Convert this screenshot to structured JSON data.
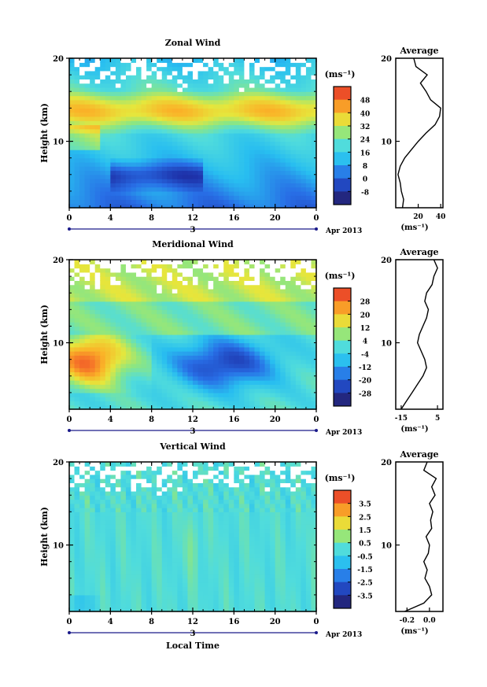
{
  "chart_data": [
    {
      "type": "heatmap",
      "title": "Zonal Wind",
      "ylabel": "Height (km)",
      "xlabel": "",
      "x_ticks": [
        "0",
        "4",
        "8",
        "12",
        "16",
        "20",
        "0"
      ],
      "y_ticks": [
        "20",
        "10"
      ],
      "date_label": "3",
      "date_suffix": "Apr 2013",
      "colorbar": {
        "unit": "(ms⁻¹)",
        "ticks": [
          "48",
          "40",
          "32",
          "24",
          "16",
          "8",
          "0",
          "-8"
        ],
        "range": [
          -12,
          52
        ]
      },
      "xlim": [
        0,
        24
      ],
      "ylim": [
        2,
        20
      ],
      "profile": {
        "title": "Average",
        "x_ticks": [
          "20",
          "40"
        ],
        "xlim": [
          0,
          42
        ],
        "y_ticks": [
          "20",
          "10"
        ],
        "unit": "(ms⁻¹)",
        "heights": [
          2,
          3,
          4,
          5,
          6,
          7,
          8,
          9,
          10,
          11,
          12,
          13,
          14,
          15,
          16,
          17,
          18,
          19,
          20
        ],
        "values": [
          6,
          7,
          5,
          4,
          2,
          4,
          8,
          14,
          20,
          27,
          35,
          39,
          40,
          31,
          27,
          22,
          28,
          18,
          16
        ]
      }
    },
    {
      "type": "heatmap",
      "title": "Meridional Wind",
      "ylabel": "Height (km)",
      "xlabel": "",
      "x_ticks": [
        "0",
        "4",
        "8",
        "12",
        "16",
        "20",
        "0"
      ],
      "y_ticks": [
        "20",
        "10"
      ],
      "date_label": "3",
      "date_suffix": "Apr 2013",
      "colorbar": {
        "unit": "(ms⁻¹)",
        "ticks": [
          "28",
          "20",
          "12",
          "4",
          "-4",
          "-12",
          "-20",
          "-28"
        ],
        "range": [
          -32,
          32
        ]
      },
      "xlim": [
        0,
        24
      ],
      "ylim": [
        2,
        20
      ],
      "profile": {
        "title": "Average",
        "x_ticks": [
          "-15",
          "5"
        ],
        "xlim": [
          -18,
          8
        ],
        "y_ticks": [
          "20",
          "10"
        ],
        "unit": "(ms⁻¹)",
        "heights": [
          2,
          3,
          4,
          5,
          6,
          7,
          8,
          9,
          10,
          11,
          12,
          13,
          14,
          15,
          16,
          17,
          18,
          19,
          20
        ],
        "values": [
          -15,
          -12,
          -9,
          -6,
          -3,
          -1,
          -2,
          -4,
          -6,
          -5,
          -3,
          -1,
          0,
          -2,
          -1,
          2,
          3,
          5,
          3
        ]
      }
    },
    {
      "type": "heatmap",
      "title": "Vertical Wind",
      "ylabel": "Height (km)",
      "xlabel": "Local Time",
      "x_ticks": [
        "0",
        "4",
        "8",
        "12",
        "16",
        "20",
        "0"
      ],
      "y_ticks": [
        "20",
        "10"
      ],
      "date_label": "3",
      "date_suffix": "Apr 2013",
      "colorbar": {
        "unit": "(ms⁻¹)",
        "ticks": [
          "3.5",
          "2.5",
          "1.5",
          "0.5",
          "-0.5",
          "-1.5",
          "-2.5",
          "-3.5"
        ],
        "range": [
          -4,
          4
        ]
      },
      "xlim": [
        0,
        24
      ],
      "ylim": [
        2,
        20
      ],
      "profile": {
        "title": "Average",
        "x_ticks": [
          "-0.2",
          "0.0"
        ],
        "xlim": [
          -0.3,
          0.12
        ],
        "y_ticks": [
          "20",
          "10"
        ],
        "unit": "(ms⁻¹)",
        "heights": [
          2,
          3,
          4,
          5,
          6,
          7,
          8,
          9,
          10,
          11,
          12,
          13,
          14,
          15,
          16,
          17,
          18,
          19,
          20
        ],
        "values": [
          -0.22,
          -0.05,
          0.02,
          0.0,
          -0.04,
          -0.02,
          -0.05,
          -0.01,
          0.0,
          -0.03,
          0.02,
          0.01,
          0.03,
          0.0,
          0.05,
          0.02,
          0.06,
          -0.05,
          -0.02
        ]
      }
    }
  ]
}
